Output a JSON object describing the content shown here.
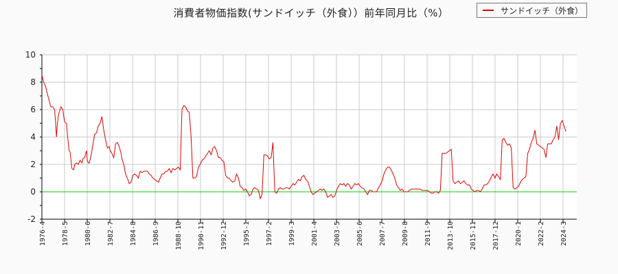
{
  "title": "消費者物価指数(サンドイッチ（外食））前年同月比（%）",
  "legend": {
    "label": "サンドイッチ（外食）",
    "color": "#dd0000"
  },
  "colors": {
    "series": "#dd0000",
    "zero_line": "#00cc00",
    "grid": "#c8c8c8",
    "axis": "#000000",
    "background": "#fafafa",
    "plot_bg": "#ffffff"
  },
  "chart_data": {
    "type": "line",
    "title": "消費者物価指数(サンドイッチ（外食））前年同月比（%）",
    "xlabel": "",
    "ylabel": "",
    "ylim": [
      -2,
      10
    ],
    "yticks": [
      -2,
      0,
      2,
      4,
      6,
      8,
      10
    ],
    "xtick_labels": [
      "1976-4",
      "1978-5",
      "1980-6",
      "1982-7",
      "1984-8",
      "1986-9",
      "1988-10",
      "1990-11",
      "1992-12",
      "1995-1",
      "1997-2",
      "1999-3",
      "2001-4",
      "2003-5",
      "2005-6",
      "2007-7",
      "2009-8",
      "2011-9",
      "2013-10",
      "2015-11",
      "2017-12",
      "2020-1",
      "2022-2",
      "2024-3"
    ],
    "grid": true,
    "legend_position": "top-right",
    "series": [
      {
        "name": "サンドイッチ（外食）",
        "x_month_index": [
          0,
          2,
          4,
          7,
          9,
          10,
          12,
          14,
          15,
          16,
          17,
          18,
          19,
          21,
          23,
          24,
          25,
          27,
          28,
          30,
          31,
          33,
          35,
          36,
          38,
          40,
          42,
          44,
          45,
          47,
          49,
          50,
          51,
          52,
          54,
          56,
          58,
          60,
          62,
          64,
          66,
          68,
          70,
          72,
          74,
          75,
          77,
          79,
          81,
          83,
          85,
          87,
          88,
          90,
          92,
          94,
          96,
          98,
          100,
          102,
          104,
          106,
          108,
          110,
          112,
          114,
          116,
          118,
          120,
          122,
          124,
          126,
          128,
          130,
          132,
          134,
          136,
          138,
          140,
          142,
          144,
          146,
          148,
          150,
          152,
          154,
          156,
          158,
          160,
          162,
          164,
          166,
          168,
          170,
          172,
          174,
          176,
          178,
          180,
          182,
          184,
          186,
          188,
          190,
          192,
          194,
          196,
          198,
          200,
          202,
          204,
          206,
          208,
          210,
          212,
          214,
          216,
          218,
          220,
          222,
          224,
          226,
          228,
          230,
          232,
          234,
          236,
          238,
          240,
          242,
          244,
          246,
          248,
          250,
          252,
          254,
          256,
          258,
          260,
          262,
          264,
          266,
          268,
          270,
          272,
          274,
          276,
          278,
          280,
          282,
          284,
          286,
          288,
          290,
          292,
          294,
          296,
          298,
          300,
          302,
          304,
          306,
          308,
          310,
          312,
          314,
          316,
          318,
          320,
          322,
          324,
          326,
          328,
          330,
          332,
          334,
          336,
          338,
          340,
          342,
          344,
          346,
          348,
          350,
          352,
          354,
          356,
          358,
          360,
          362,
          364,
          366,
          368,
          370,
          372,
          374,
          376,
          378,
          380,
          382,
          384,
          386,
          388,
          390,
          392,
          394,
          396,
          398,
          400,
          402,
          404,
          406,
          408,
          410,
          412,
          414,
          416,
          418,
          420,
          422,
          424,
          426,
          428,
          430,
          432,
          434,
          436,
          438,
          440,
          442,
          444,
          446,
          448,
          450,
          452,
          454,
          456,
          458,
          460,
          462,
          464,
          466,
          468,
          470,
          472,
          474,
          476,
          478,
          480,
          482,
          484,
          486,
          488,
          490,
          492,
          494,
          496,
          498,
          500,
          502,
          504,
          506,
          508,
          510,
          512,
          514,
          516,
          518,
          520,
          522,
          524,
          526,
          528,
          530,
          532,
          534,
          536,
          538,
          540,
          542,
          544,
          546,
          548,
          550,
          552,
          554,
          556,
          558,
          560,
          562,
          564,
          566,
          568,
          570,
          572,
          574,
          576,
          578,
          580,
          582,
          584,
          586
        ],
        "values": [
          8.5,
          8.0,
          7.7,
          6.9,
          6.4,
          6.2,
          6.2,
          6.0,
          5.1,
          4.0,
          4.9,
          5.5,
          5.8,
          6.2,
          6.0,
          5.5,
          5.1,
          5.0,
          4.2,
          3.0,
          2.9,
          1.7,
          1.6,
          2.0,
          2.1,
          2.0,
          2.3,
          2.1,
          2.4,
          2.5,
          3.0,
          2.3,
          2.1,
          2.1,
          2.6,
          3.4,
          4.2,
          4.3,
          4.8,
          5.0,
          5.5,
          4.5,
          3.8,
          3.2,
          3.3,
          3.0,
          2.8,
          2.5,
          3.5,
          3.6,
          3.3,
          2.8,
          2.4,
          2.0,
          1.3,
          1.0,
          0.6,
          0.7,
          1.2,
          1.3,
          1.2,
          1.0,
          1.5,
          1.4,
          1.5,
          1.5,
          1.5,
          1.3,
          1.2,
          1.0,
          0.9,
          0.8,
          0.7,
          1.0,
          1.3,
          1.3,
          1.5,
          1.5,
          1.7,
          1.4,
          1.7,
          1.6,
          1.7,
          1.8,
          1.6,
          6.0,
          6.3,
          6.2,
          5.9,
          5.8,
          4.0,
          1.0,
          1.0,
          1.1,
          1.8,
          2.0,
          2.3,
          2.4,
          2.6,
          2.8,
          3.0,
          2.7,
          3.2,
          3.3,
          3.0,
          2.5,
          2.5,
          2.3,
          2.2,
          1.2,
          1.0,
          1.0,
          0.8,
          0.7,
          0.8,
          1.3,
          1.0,
          0.4,
          0.3,
          0.1,
          0.2,
          0.0,
          -0.3,
          -0.2,
          0.2,
          0.3,
          0.2,
          0.1,
          -0.5,
          -0.2,
          2.7,
          2.7,
          2.6,
          2.4,
          2.5,
          3.6,
          0.0,
          -0.1,
          0.2,
          0.3,
          0.2,
          0.2,
          0.3,
          0.3,
          0.2,
          0.4,
          0.6,
          0.5,
          0.7,
          0.9,
          0.8,
          1.1,
          1.2,
          0.9,
          0.8,
          0.4,
          0.0,
          -0.2,
          -0.1,
          0.0,
          0.1,
          0.2,
          0.1,
          0.2,
          0.0,
          -0.4,
          -0.3,
          -0.2,
          -0.4,
          -0.3,
          0.1,
          0.4,
          0.6,
          0.5,
          0.6,
          0.4,
          0.6,
          0.5,
          0.2,
          0.4,
          0.6,
          0.5,
          0.6,
          0.4,
          0.3,
          0.2,
          0.0,
          -0.2,
          0.1,
          0.1,
          0.0,
          0.0,
          0.0,
          0.3,
          0.5,
          0.8,
          1.3,
          1.6,
          1.8,
          1.8,
          1.6,
          1.3,
          1.0,
          0.5,
          0.3,
          0.1,
          0.2,
          0.0,
          0.0,
          0.0,
          0.1,
          0.2,
          0.2,
          0.2,
          0.2,
          0.2,
          0.2,
          0.1,
          0.1,
          0.1,
          0.1,
          0.0,
          -0.1,
          -0.1,
          0.0,
          0.0,
          -0.1,
          0.1,
          2.8,
          2.8,
          2.8,
          2.9,
          3.0,
          3.1,
          0.8,
          0.6,
          0.7,
          0.8,
          0.6,
          0.7,
          0.8,
          0.6,
          0.5,
          0.5,
          0.2,
          0.1,
          0.0,
          0.1,
          0.1,
          0.0,
          0.2,
          0.5,
          0.5,
          0.6,
          0.8,
          1.1,
          1.3,
          1.0,
          1.3,
          1.1,
          0.9,
          3.8,
          3.9,
          3.6,
          3.4,
          3.5,
          3.2,
          0.3,
          0.2,
          0.3,
          0.4,
          0.7,
          0.9,
          1.0,
          1.1,
          2.8,
          3.1,
          3.6,
          3.9,
          4.5,
          3.5,
          3.4,
          3.3,
          3.2,
          3.1,
          2.5,
          3.5,
          3.5,
          3.5,
          3.8,
          4.0,
          4.8,
          3.8,
          5.0,
          5.2,
          4.8,
          4.4
        ]
      }
    ]
  }
}
